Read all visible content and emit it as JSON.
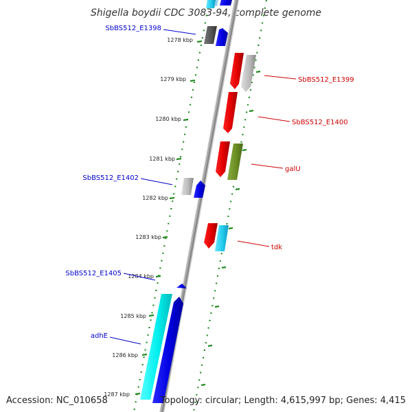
{
  "title": "Shigella boydii CDC 3083-94, complete genome",
  "footer": {
    "accession": "Accession: NC_010658",
    "summary": "Topology: circular; Length: 4,615,997 bp; Genes: 4,415"
  },
  "colors": {
    "backbone": "#777777",
    "ruler": "#228b22",
    "label_blue": "#0000cc",
    "label_red": "#cc0000"
  },
  "ticks": [
    "1278 kbp",
    "1279 kbp",
    "1280 kbp",
    "1281 kbp",
    "1282 kbp",
    "1283 kbp",
    "1284 kbp",
    "1285 kbp",
    "1286 kbp",
    "1287 kbp"
  ],
  "gene_labels": [
    {
      "text": "SbBS512_E1398",
      "color": "blue"
    },
    {
      "text": "SbBS512_E1399",
      "color": "red"
    },
    {
      "text": "SbBS512_E1400",
      "color": "red"
    },
    {
      "text": "galU",
      "color": "red"
    },
    {
      "text": "SbBS512_E1402",
      "color": "blue"
    },
    {
      "text": "tdk",
      "color": "red"
    },
    {
      "text": "SbBS512_E1405",
      "color": "blue"
    },
    {
      "text": "adhE",
      "color": "blue"
    }
  ]
}
